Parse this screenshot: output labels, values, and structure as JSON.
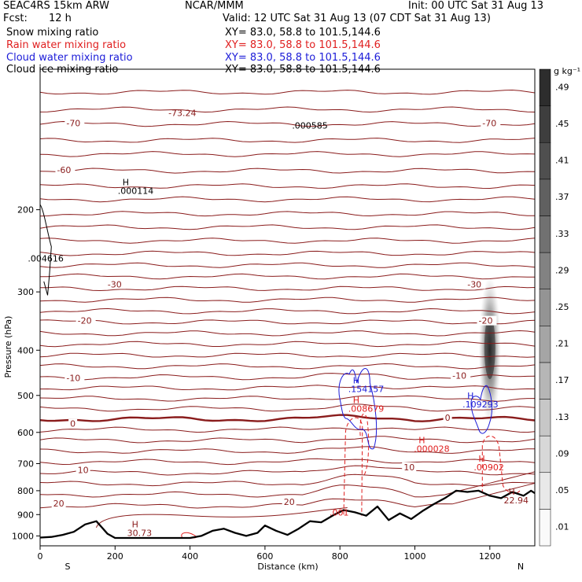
{
  "header": {
    "model": "SEAC4RS 15km ARW",
    "org": "NCAR/MMM",
    "init": "Init: 00 UTC Sat 31 Aug 13",
    "fcst_label": "Fcst:",
    "fcst_value": "12 h",
    "valid": "Valid: 12 UTC Sat 31 Aug 13 (07 CDT Sat 31 Aug 13)",
    "fields": [
      {
        "name": "Snow mixing ratio",
        "xy": "XY=  83.0, 58.8 to 101.5,144.6",
        "color": "#000000"
      },
      {
        "name": "Rain water mixing ratio",
        "xy": "XY=  83.0, 58.8 to 101.5,144.6",
        "color": "#e02020"
      },
      {
        "name": "Cloud water mixing ratio",
        "xy": "XY=  83.0, 58.8 to 101.5,144.6",
        "color": "#1c1cd8"
      },
      {
        "name": "Cloud ice mixing ratio",
        "xy": "XY=  83.0, 58.8 to 101.5,144.6",
        "color": "#000000"
      }
    ]
  },
  "chart_data": {
    "type": "cross-section",
    "xlabel": "Distance (km)",
    "ylabel": "Pressure (hPa)",
    "xlim": [
      0,
      1320
    ],
    "ylim": [
      1050,
      100
    ],
    "x_ticks": [
      0,
      200,
      400,
      600,
      800,
      1000,
      1200
    ],
    "y_ticks": [
      200,
      300,
      400,
      500,
      600,
      700,
      800,
      900,
      1000
    ],
    "y_scale": "log",
    "end_labels": {
      "left": "S",
      "right": "N"
    },
    "colorbar": {
      "unit": "g kg⁻¹",
      "levels": [
        ".01",
        ".05",
        ".09",
        ".13",
        ".17",
        ".21",
        ".25",
        ".29",
        ".33",
        ".37",
        ".41",
        ".45",
        ".49"
      ]
    },
    "isotherm_labels": [
      {
        "text": "-70",
        "x": 70,
        "p": 131
      },
      {
        "text": "-70",
        "x": 1180,
        "p": 131
      },
      {
        "text": "-60",
        "x": 45,
        "p": 165
      },
      {
        "text": "-30",
        "x": 180,
        "p": 290
      },
      {
        "text": "-30",
        "x": 1140,
        "p": 290
      },
      {
        "text": "-20",
        "x": 100,
        "p": 347
      },
      {
        "text": "-20",
        "x": 1170,
        "p": 347
      },
      {
        "text": "-10",
        "x": 70,
        "p": 460
      },
      {
        "text": "-10",
        "x": 1100,
        "p": 455
      },
      {
        "text": "0",
        "x": 80,
        "p": 577
      },
      {
        "text": "0",
        "x": 1080,
        "p": 560
      },
      {
        "text": "10",
        "x": 100,
        "p": 725
      },
      {
        "text": "10",
        "x": 970,
        "p": 715
      },
      {
        "text": "20",
        "x": 35,
        "p": 855
      },
      {
        "text": "20",
        "x": 650,
        "p": 848
      }
    ],
    "extrema_labels": [
      {
        "mark": "H",
        "value": ".000114",
        "x": 245,
        "p": 185,
        "color": "#000000"
      },
      {
        "mark": "",
        "value": "-73.24",
        "x": 380,
        "p": 126,
        "color": "#8a1c1c"
      },
      {
        "mark": "",
        "value": ".000585",
        "x": 710,
        "p": 134,
        "color": "#000000"
      },
      {
        "mark": "",
        "value": ".004616",
        "x": 5,
        "p": 258,
        "color": "#000000"
      },
      {
        "mark": "H",
        "value": ".154157",
        "x": 860,
        "p": 492,
        "color": "#1c1cd8"
      },
      {
        "mark": "H",
        "value": ".008679",
        "x": 860,
        "p": 542,
        "color": "#e02020"
      },
      {
        "mark": "H",
        "value": ".109293",
        "x": 1165,
        "p": 530,
        "color": "#1c1cd8"
      },
      {
        "mark": "H",
        "value": ".000028",
        "x": 1035,
        "p": 660,
        "color": "#e02020"
      },
      {
        "mark": "H",
        "value": ".00902",
        "x": 1195,
        "p": 723,
        "color": "#e02020"
      },
      {
        "mark": "H",
        "value": "22.94",
        "x": 1275,
        "p": 852,
        "color": "#8a1c1c"
      },
      {
        "mark": "H",
        "value": "30.73",
        "x": 270,
        "p": 1000,
        "color": "#8a1c1c"
      },
      {
        "mark": "",
        "value": ".001",
        "x": 810,
        "p": 905,
        "color": "#e02020"
      }
    ],
    "terrain": {
      "x": [
        0,
        30,
        60,
        90,
        120,
        150,
        180,
        200,
        300,
        400,
        430,
        460,
        490,
        520,
        550,
        580,
        600,
        630,
        660,
        690,
        720,
        750,
        780,
        810,
        840,
        870,
        900,
        930,
        960,
        990,
        1020,
        1050,
        1080,
        1110,
        1140,
        1170,
        1200,
        1230,
        1260,
        1290,
        1310,
        1320
      ],
      "p": [
        1008,
        1005,
        995,
        980,
        945,
        930,
        990,
        1010,
        1010,
        1010,
        1000,
        975,
        965,
        985,
        1000,
        985,
        950,
        975,
        995,
        965,
        930,
        935,
        905,
        880,
        890,
        905,
        865,
        925,
        895,
        920,
        885,
        855,
        830,
        800,
        805,
        800,
        820,
        830,
        805,
        820,
        800,
        810
      ]
    }
  }
}
